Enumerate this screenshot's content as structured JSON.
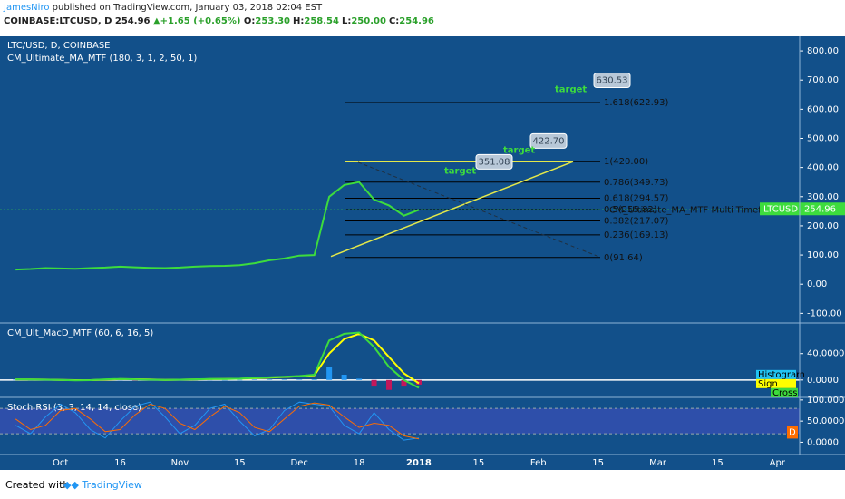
{
  "header": {
    "author": "JamesNiro",
    "published": "published on TradingView.com, January 03, 2018 02:04 EST",
    "symbol": "COINBASE:LTCUSD, D",
    "last": "254.96",
    "change": "+1.65 (+0.65%)",
    "ohlc": [
      {
        "k": "O:",
        "v": "253.30"
      },
      {
        "k": "H:",
        "v": "258.54"
      },
      {
        "k": "L:",
        "v": "250.00"
      },
      {
        "k": "C:",
        "v": "254.96"
      }
    ]
  },
  "footer": {
    "created": "Created with",
    "brand": "TradingView"
  },
  "chart_data": [
    {
      "type": "line",
      "title": "LTC/USD, D, COINBASE",
      "subtitle": "CM_Ultimate_MA_MTF (180, 3, 1, 2, 50, 1)",
      "ma_label": "CM_Ultimate_MA_MTF Multi-Timeframe M",
      "symbol_tag": "LTCUSD",
      "last_price": 254.96,
      "categories": [
        null,
        null,
        null,
        "Oct",
        null,
        null,
        null,
        "16",
        null,
        null,
        null,
        "Nov",
        null,
        null,
        null,
        "15",
        null,
        null,
        null,
        "Dec",
        null,
        null,
        null,
        "18",
        null,
        null,
        null,
        "2018",
        null,
        null,
        null,
        "15",
        null,
        null,
        null,
        "Feb",
        null,
        null,
        null,
        "15",
        null,
        null,
        null,
        "Mar",
        null,
        null,
        null,
        "15",
        null,
        null,
        null,
        "Apr",
        null
      ],
      "series": [
        {
          "color": "#3ddc3d",
          "values": [
            50,
            52,
            55,
            54,
            53,
            55,
            57,
            60,
            58,
            56,
            55,
            57,
            60,
            62,
            63,
            65,
            72,
            82,
            88,
            98,
            100,
            300,
            340,
            350,
            290,
            270,
            235,
            254.96,
            null,
            null,
            null,
            null,
            null,
            null,
            null,
            null,
            null,
            null,
            null,
            null,
            null,
            null,
            null,
            null,
            null,
            null,
            null,
            null,
            null,
            null,
            null,
            null,
            null
          ]
        }
      ],
      "ylim": [
        -130,
        850
      ],
      "yticks": [
        {
          "value": 800,
          "label": "800.00"
        },
        {
          "value": 700,
          "label": "700.00"
        },
        {
          "value": 600,
          "label": "600.00"
        },
        {
          "value": 500,
          "label": "500.00"
        },
        {
          "value": 400,
          "label": "400.00"
        },
        {
          "value": 300,
          "label": "300.00"
        },
        {
          "value": 200,
          "label": "200.00"
        },
        {
          "value": 100,
          "label": "100.00"
        },
        {
          "value": 0,
          "label": "0.00"
        },
        {
          "value": -100,
          "label": "-100.00"
        }
      ],
      "fib_levels": [
        {
          "value": 622.93,
          "label": "1.618(622.93)"
        },
        {
          "value": 420,
          "label": "1(420.00)"
        },
        {
          "value": 349.73,
          "label": "0.786(349.73)"
        },
        {
          "value": 294.57,
          "label": "0.618(294.57)"
        },
        {
          "value": 255.82,
          "label": "0.5(255.82)"
        },
        {
          "value": 217.07,
          "label": "0.382(217.07)"
        },
        {
          "value": 169.13,
          "label": "0.236(169.13)"
        },
        {
          "value": 91.64,
          "label": "0(91.64)"
        }
      ],
      "targets": [
        {
          "text": "target",
          "value": 630.53,
          "label": "630.53"
        },
        {
          "text": "target",
          "value": 422.7,
          "label": "422.70"
        },
        {
          "text": "target",
          "value": 351.08,
          "label": "351.08"
        }
      ]
    },
    {
      "type": "macd",
      "title": "CM_Ult_MacD_MTF (60, 6, 16, 5)",
      "ylim": [
        -25,
        85
      ],
      "yticks": [
        {
          "value": 40,
          "label": "40.0000"
        },
        {
          "value": 0,
          "label": "0.0000"
        }
      ],
      "series": [
        {
          "name": "Histogram",
          "color": "#2196f3",
          "style": "bar",
          "values": [
            0.3,
            0,
            -0.1,
            -0.2,
            -0.3,
            0,
            0.5,
            0.3,
            -0.1,
            -0.2,
            -0.2,
            0.1,
            0.2,
            0.3,
            0.1,
            0.2,
            0.5,
            0.5,
            0.5,
            0.5,
            1,
            20,
            8,
            2,
            -10,
            -15,
            -10,
            -7,
            null,
            null,
            null,
            null,
            null,
            null,
            null,
            null,
            null,
            null,
            null,
            null,
            null,
            null,
            null,
            null,
            null,
            null,
            null,
            null,
            null,
            null,
            null,
            null,
            null
          ]
        },
        {
          "name": "Sign",
          "color": "#ffff00",
          "style": "line",
          "values": [
            0.7,
            0.8,
            0.6,
            0.2,
            -0.2,
            -0.3,
            0.5,
            1.2,
            1.1,
            0.7,
            0.2,
            0.4,
            0.8,
            1.2,
            1.4,
            1.8,
            2.5,
            3.5,
            4.5,
            5.5,
            7,
            40,
            62,
            70,
            60,
            35,
            10,
            -5,
            null,
            null,
            null,
            null,
            null,
            null,
            null,
            null,
            null,
            null,
            null,
            null,
            null,
            null,
            null,
            null,
            null,
            null,
            null,
            null,
            null,
            null,
            null,
            null,
            null
          ]
        },
        {
          "name": "Cross",
          "color": "#3ddc3d",
          "style": "line",
          "values": [
            1,
            0.8,
            0.5,
            0,
            -0.5,
            -0.3,
            1,
            1.5,
            1,
            0.5,
            0,
            0.5,
            1,
            1.5,
            1.5,
            2,
            3,
            4,
            5,
            6,
            8,
            60,
            70,
            72,
            50,
            20,
            0,
            -12,
            null,
            null,
            null,
            null,
            null,
            null,
            null,
            null,
            null,
            null,
            null,
            null,
            null,
            null,
            null,
            null,
            null,
            null,
            null,
            null,
            null,
            null,
            null,
            null,
            null
          ]
        }
      ]
    },
    {
      "type": "stoch",
      "title": "Stoch RSI (3, 3, 14, 14, close)",
      "ylim": [
        -27,
        104
      ],
      "band": [
        20,
        80
      ],
      "yticks": [
        {
          "value": 100,
          "label": "100.0000"
        },
        {
          "value": 50,
          "label": "50.0000"
        },
        {
          "value": 0,
          "label": "0.0000"
        }
      ],
      "side_tag": "D",
      "series": [
        {
          "color": "#2196f3",
          "style": "line",
          "values": [
            40,
            20,
            60,
            90,
            70,
            30,
            10,
            50,
            85,
            95,
            60,
            20,
            40,
            80,
            90,
            50,
            15,
            30,
            75,
            95,
            90,
            85,
            40,
            20,
            70,
            30,
            5,
            10,
            null,
            null,
            null,
            null,
            null,
            null,
            null,
            null,
            null,
            null,
            null,
            null,
            null,
            null,
            null,
            null,
            null,
            null,
            null,
            null,
            null,
            null,
            null,
            null,
            null
          ]
        },
        {
          "color": "#ff6d00",
          "style": "line",
          "values": [
            55,
            30,
            40,
            75,
            80,
            55,
            25,
            30,
            65,
            90,
            80,
            45,
            30,
            60,
            85,
            70,
            35,
            25,
            55,
            85,
            93,
            88,
            60,
            35,
            45,
            40,
            15,
            8,
            null,
            null,
            null,
            null,
            null,
            null,
            null,
            null,
            null,
            null,
            null,
            null,
            null,
            null,
            null,
            null,
            null,
            null,
            null,
            null,
            null,
            null,
            null,
            null,
            null
          ]
        }
      ]
    }
  ]
}
